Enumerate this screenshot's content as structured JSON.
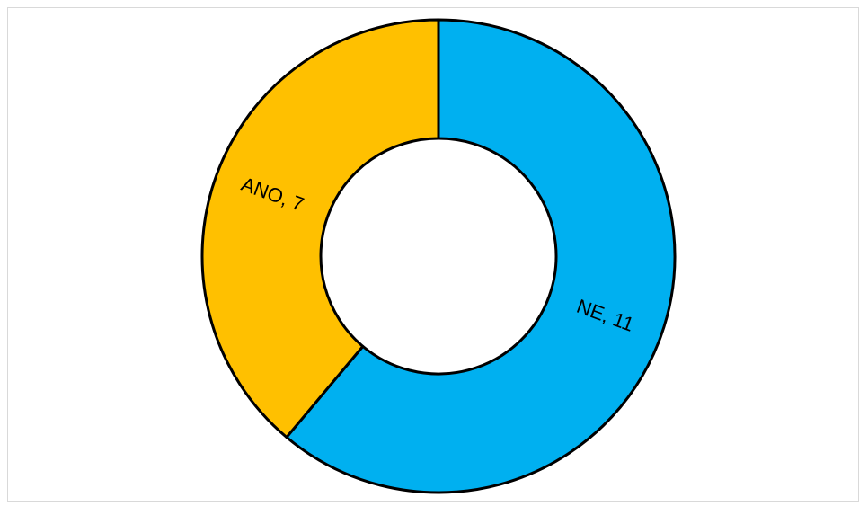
{
  "chart_data": {
    "type": "donut",
    "values": [
      11,
      7
    ],
    "value_labels": [
      "NE, 11",
      "ANO, 7"
    ],
    "colors": [
      "#00b0f0",
      "#ffc000"
    ]
  }
}
